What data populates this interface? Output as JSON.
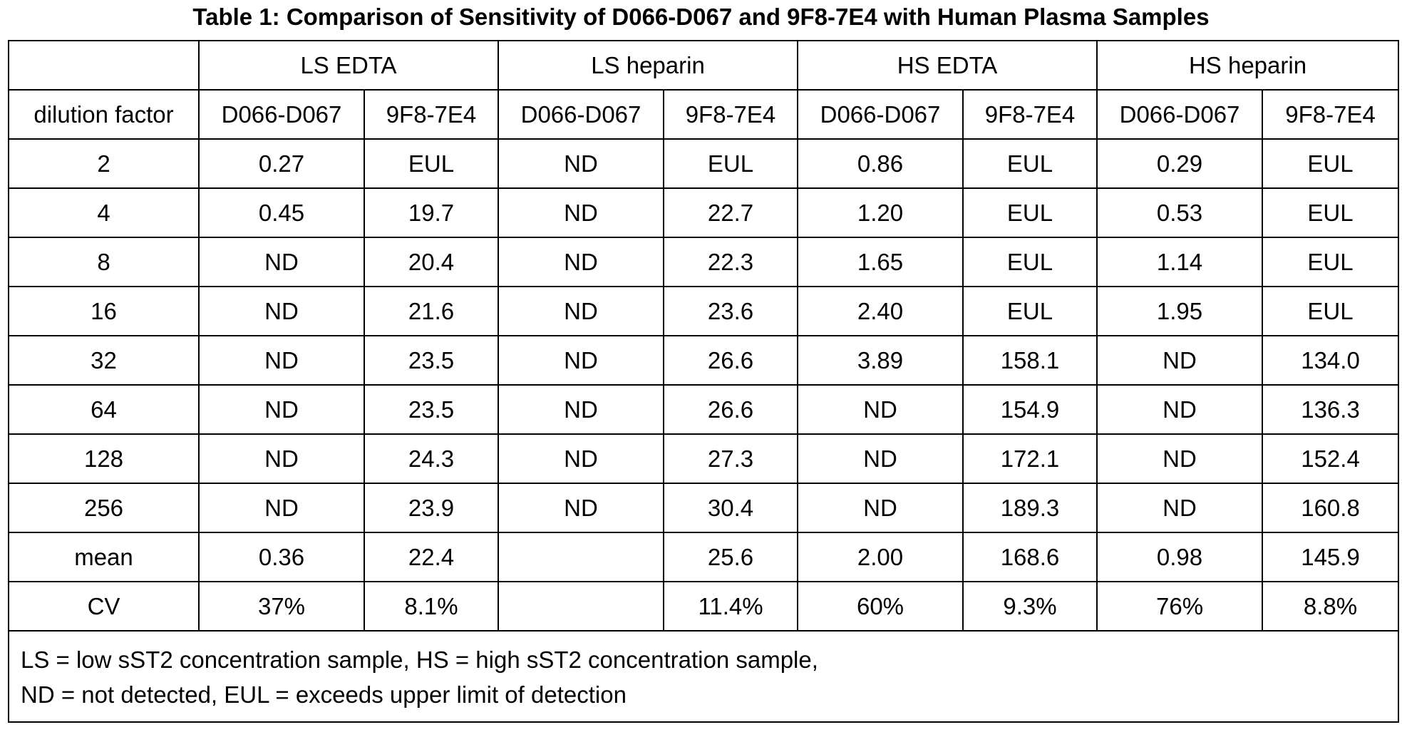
{
  "title": "Table 1: Comparison of Sensitivity of D066-D067 and 9F8-7E4 with Human Plasma Samples",
  "table": {
    "groups": [
      "LS EDTA",
      "LS heparin",
      "HS EDTA",
      "HS heparin"
    ],
    "subheader": [
      "dilution factor",
      "D066-D067",
      "9F8-7E4",
      "D066-D067",
      "9F8-7E4",
      "D066-D067",
      "9F8-7E4",
      "D066-D067",
      "9F8-7E4"
    ],
    "rows": [
      [
        "2",
        "0.27",
        "EUL",
        "ND",
        "EUL",
        "0.86",
        "EUL",
        "0.29",
        "EUL"
      ],
      [
        "4",
        "0.45",
        "19.7",
        "ND",
        "22.7",
        "1.20",
        "EUL",
        "0.53",
        "EUL"
      ],
      [
        "8",
        "ND",
        "20.4",
        "ND",
        "22.3",
        "1.65",
        "EUL",
        "1.14",
        "EUL"
      ],
      [
        "16",
        "ND",
        "21.6",
        "ND",
        "23.6",
        "2.40",
        "EUL",
        "1.95",
        "EUL"
      ],
      [
        "32",
        "ND",
        "23.5",
        "ND",
        "26.6",
        "3.89",
        "158.1",
        "ND",
        "134.0"
      ],
      [
        "64",
        "ND",
        "23.5",
        "ND",
        "26.6",
        "ND",
        "154.9",
        "ND",
        "136.3"
      ],
      [
        "128",
        "ND",
        "24.3",
        "ND",
        "27.3",
        "ND",
        "172.1",
        "ND",
        "152.4"
      ],
      [
        "256",
        "ND",
        "23.9",
        "ND",
        "30.4",
        "ND",
        "189.3",
        "ND",
        "160.8"
      ],
      [
        "mean",
        "0.36",
        "22.4",
        "",
        "25.6",
        "2.00",
        "168.6",
        "0.98",
        "145.9"
      ],
      [
        "CV",
        "37%",
        "8.1%",
        "",
        "11.4%",
        "60%",
        "9.3%",
        "76%",
        "8.8%"
      ]
    ],
    "notes": [
      "LS = low sST2 concentration sample, HS = high sST2 concentration sample,",
      "ND = not detected, EUL = exceeds upper limit of detection"
    ]
  }
}
